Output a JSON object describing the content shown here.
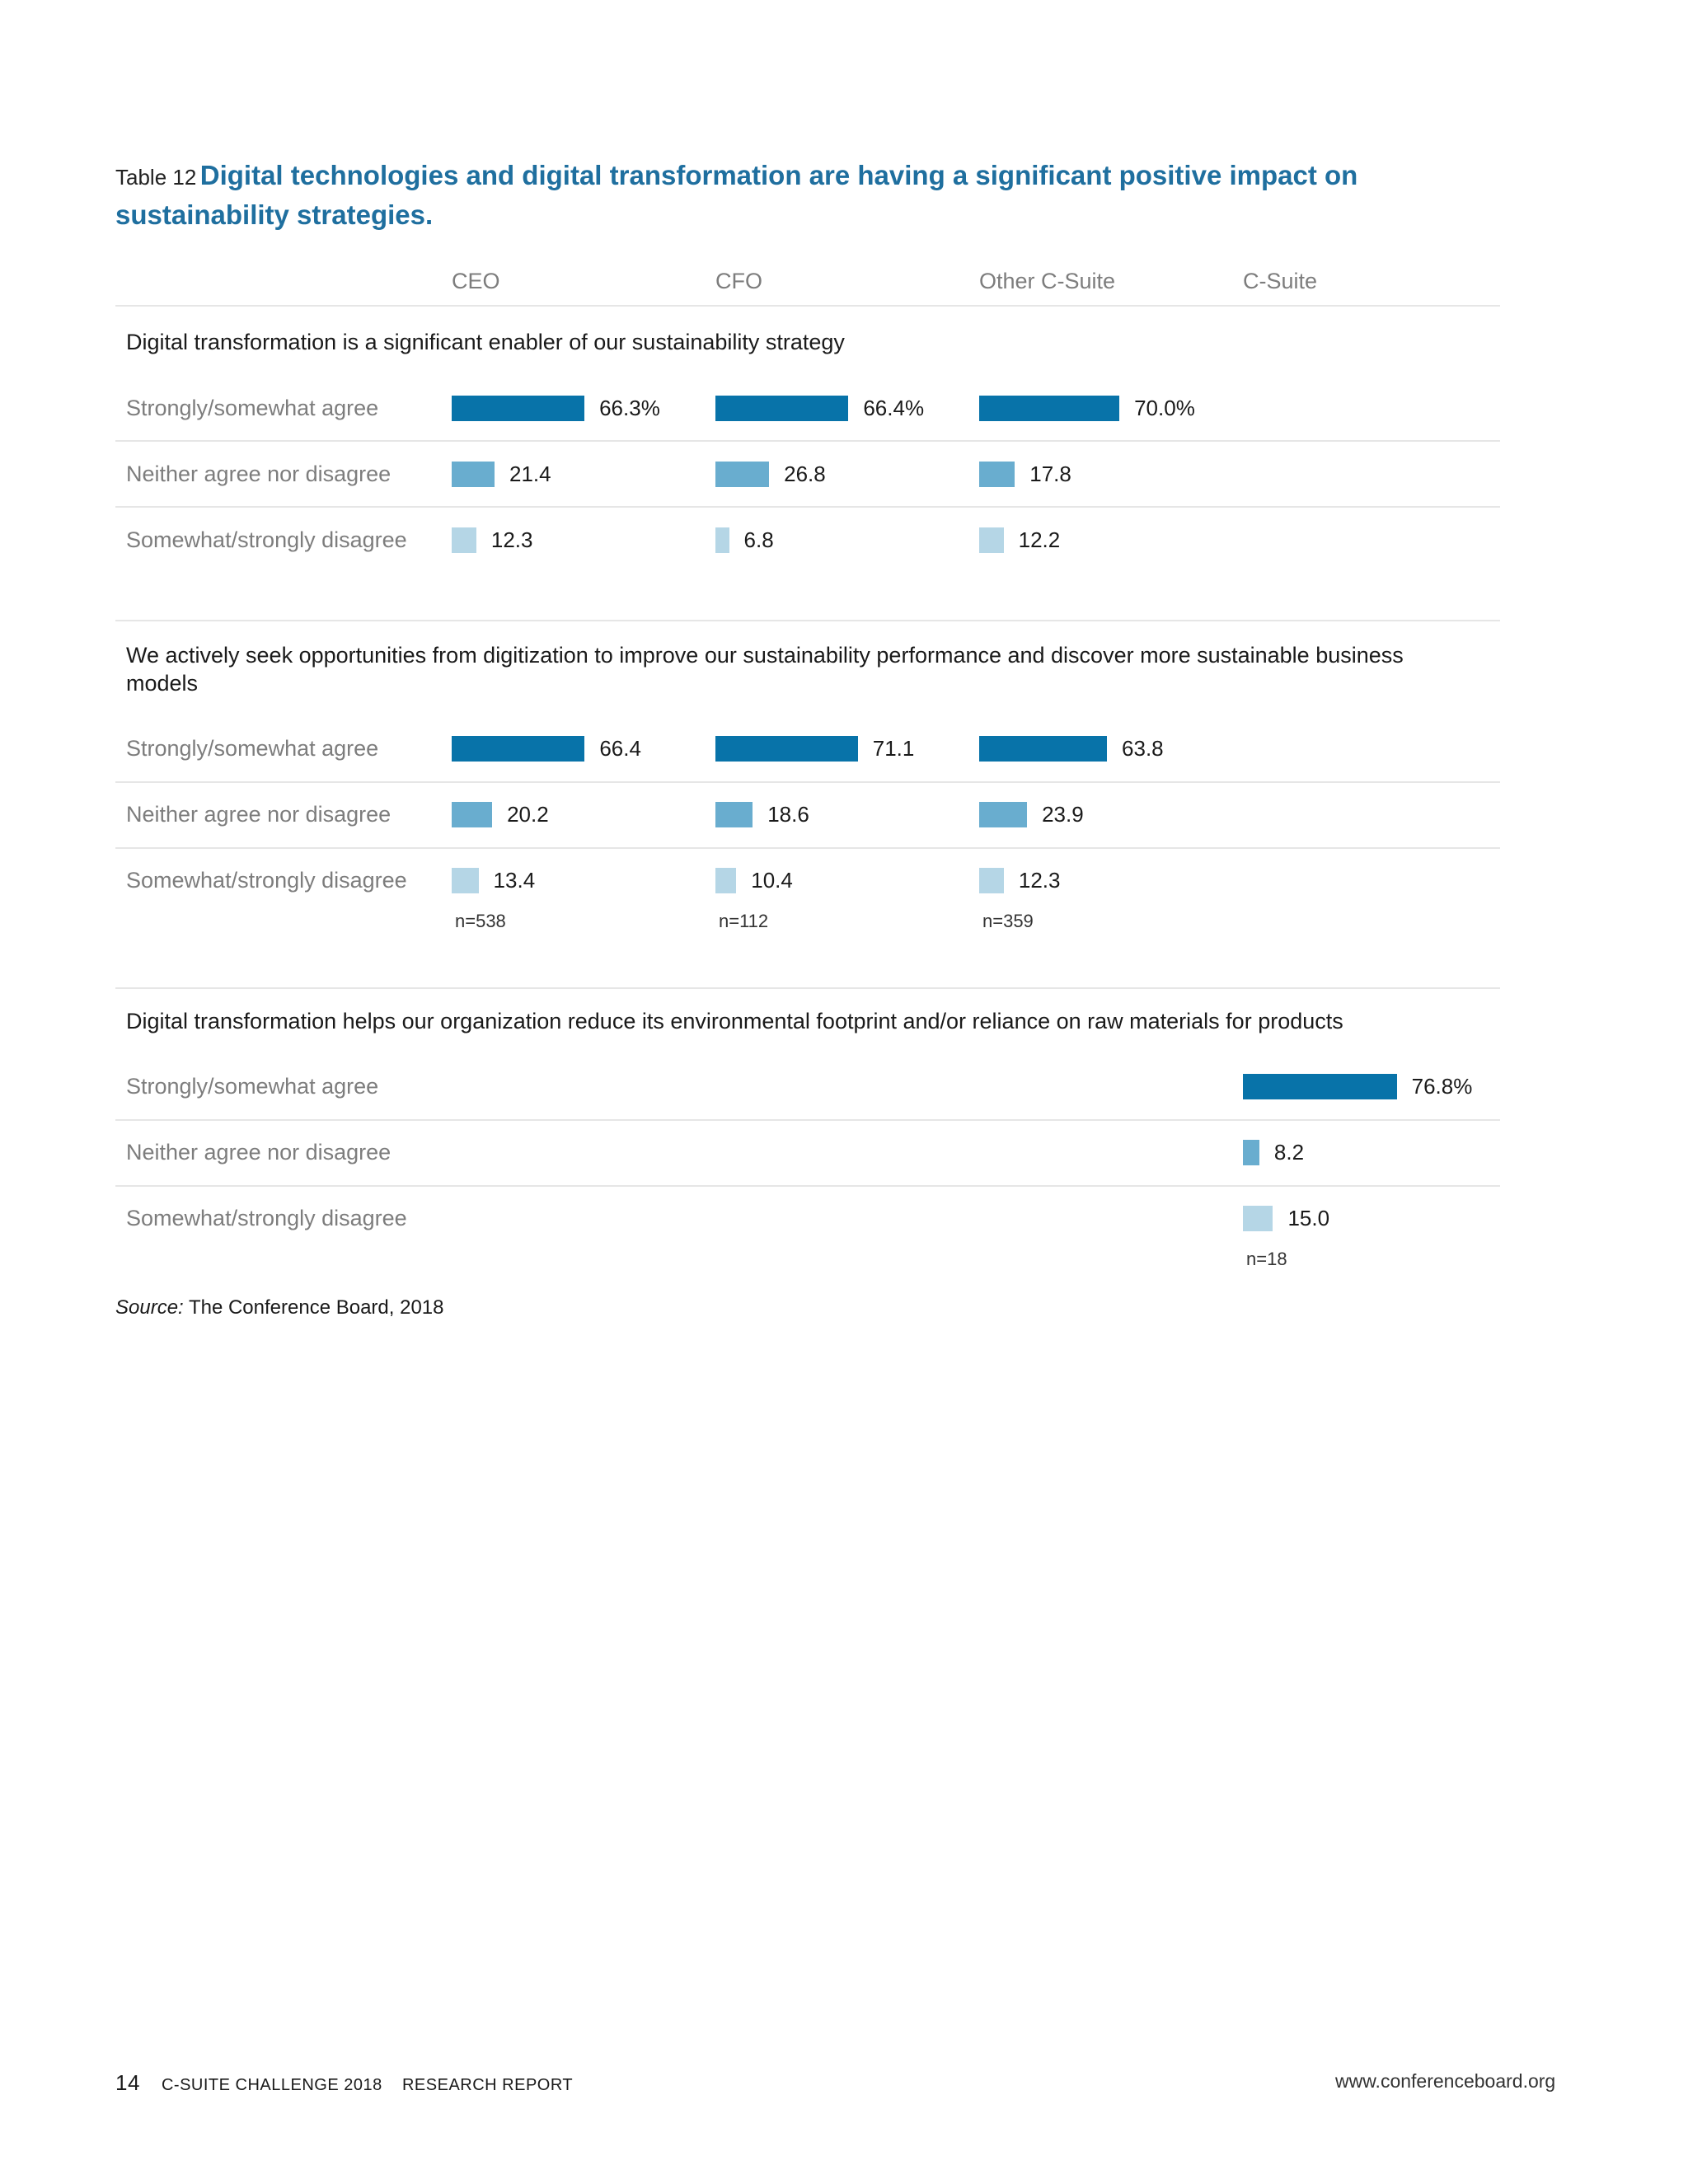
{
  "title": {
    "label": "Table 12",
    "text": "Digital technologies and digital transformation are having a significant positive impact on sustainability strategies."
  },
  "columns": [
    "CEO",
    "CFO",
    "Other C-Suite",
    "C-Suite"
  ],
  "colors": {
    "agree": "#0873a9",
    "neither": "#69adcf",
    "disagree": "#b5d6e6",
    "title": "#1f6f9f"
  },
  "chart_data": {
    "type": "bar",
    "orientation": "horizontal",
    "categories": [
      "Strongly/somewhat agree",
      "Neither agree nor disagree",
      "Somewhat/strongly disagree"
    ],
    "panels": [
      {
        "title": "Digital transformation is a significant enabler of our sustainability strategy",
        "series": [
          {
            "name": "CEO",
            "values": [
              66.3,
              21.4,
              12.3
            ],
            "labels": [
              "66.3%",
              "21.4",
              "12.3"
            ],
            "n": ""
          },
          {
            "name": "CFO",
            "values": [
              66.4,
              26.8,
              6.8
            ],
            "labels": [
              "66.4%",
              "26.8",
              "6.8"
            ],
            "n": ""
          },
          {
            "name": "Other C-Suite",
            "values": [
              70.0,
              17.8,
              12.2
            ],
            "labels": [
              "70.0%",
              "17.8",
              "12.2"
            ],
            "n": ""
          }
        ]
      },
      {
        "title": "We actively seek opportunities from digitization to improve our sustainability performance and discover more sustainable business models",
        "series": [
          {
            "name": "CEO",
            "values": [
              66.4,
              20.2,
              13.4
            ],
            "labels": [
              "66.4",
              "20.2",
              "13.4"
            ],
            "n": "n=538"
          },
          {
            "name": "CFO",
            "values": [
              71.1,
              18.6,
              10.4
            ],
            "labels": [
              "71.1",
              "18.6",
              "10.4"
            ],
            "n": "n=112"
          },
          {
            "name": "Other C-Suite",
            "values": [
              63.8,
              23.9,
              12.3
            ],
            "labels": [
              "63.8",
              "23.9",
              "12.3"
            ],
            "n": "n=359"
          }
        ]
      },
      {
        "title": "Digital transformation helps our organization reduce its environmental footprint and/or reliance on raw materials for products",
        "series": [
          {
            "name": "C-Suite",
            "values": [
              76.8,
              8.2,
              15.0
            ],
            "labels": [
              "76.8%",
              "8.2",
              "15.0"
            ],
            "n": "n=18"
          }
        ]
      }
    ]
  },
  "source": {
    "label": "Source:",
    "text": "The Conference Board, 2018"
  },
  "footer": {
    "page_number": "14",
    "report_name": "C-SUITE CHALLENGE 2018",
    "report_type": "RESEARCH REPORT",
    "website": "www.conferenceboard.org"
  }
}
